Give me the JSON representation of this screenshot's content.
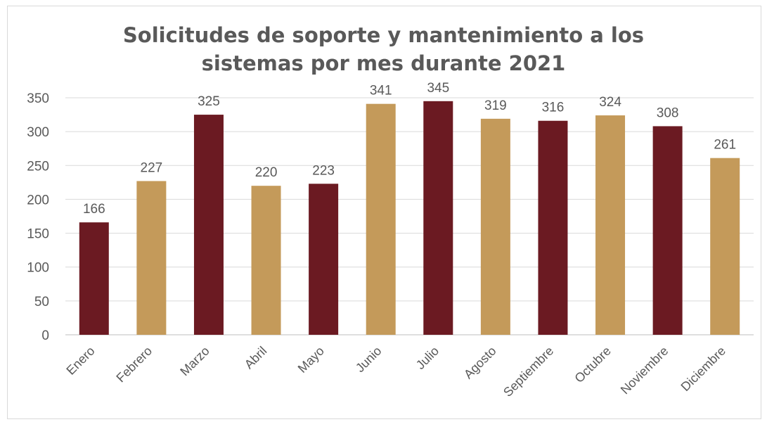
{
  "chart_data": {
    "type": "bar",
    "title_lines": [
      "Solicitudes de soporte y mantenimiento a los",
      "sistemas por mes durante 2021"
    ],
    "categories": [
      "Enero",
      "Febrero",
      "Marzo",
      "Abril",
      "Mayo",
      "Junio",
      "Julio",
      "Agosto",
      "Septiembre",
      "Octubre",
      "Noviembre",
      "Diciembre"
    ],
    "values": [
      166,
      227,
      325,
      220,
      223,
      341,
      345,
      319,
      316,
      324,
      308,
      261
    ],
    "bar_colors": [
      "#6b1a22",
      "#c49a5a",
      "#6b1a22",
      "#c49a5a",
      "#6b1a22",
      "#c49a5a",
      "#6b1a22",
      "#c49a5a",
      "#6b1a22",
      "#c49a5a",
      "#6b1a22",
      "#c49a5a"
    ],
    "ylim": [
      0,
      350
    ],
    "yticks": [
      0,
      50,
      100,
      150,
      200,
      250,
      300,
      350
    ],
    "grid": true,
    "data_labels": true
  }
}
